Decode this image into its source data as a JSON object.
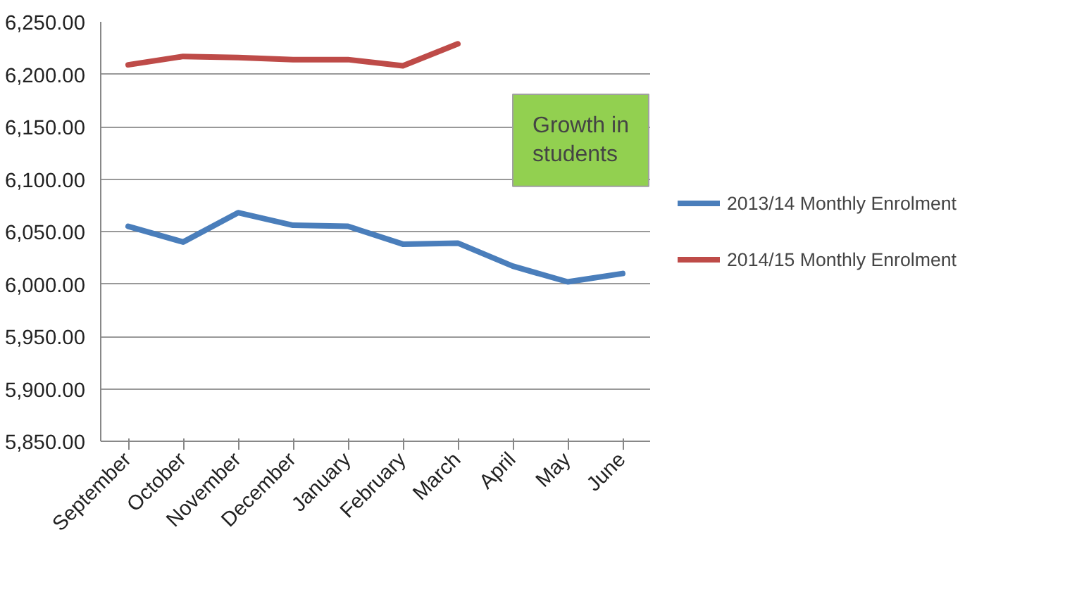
{
  "chart_data": {
    "type": "line",
    "categories": [
      "September",
      "October",
      "November",
      "December",
      "January",
      "February",
      "March",
      "April",
      "May",
      "June"
    ],
    "series": [
      {
        "name": "2013/14 Monthly Enrolment",
        "color": "#4a7ebb",
        "values": [
          6055,
          6040,
          6068,
          6056,
          6055,
          6038,
          6039,
          6017,
          6002,
          6010
        ]
      },
      {
        "name": "2014/15 Monthly Enrolment",
        "color": "#be4b48",
        "values": [
          6209,
          6217,
          6216,
          6214,
          6214,
          6208,
          6229,
          null,
          null,
          null
        ]
      }
    ],
    "ylim": [
      5850,
      6250
    ],
    "yticks": [
      {
        "value": 5850,
        "label": "5,850.00"
      },
      {
        "value": 5900,
        "label": "5,900.00"
      },
      {
        "value": 5950,
        "label": "5,950.00"
      },
      {
        "value": 6000,
        "label": "6,000.00"
      },
      {
        "value": 6050,
        "label": "6,050.00"
      },
      {
        "value": 6100,
        "label": "6,100.00"
      },
      {
        "value": 6150,
        "label": "6,150.00"
      },
      {
        "value": 6200,
        "label": "6,200.00"
      },
      {
        "value": 6250,
        "label": "6,250.00"
      }
    ],
    "annotations": [
      "Growth in\nstudents"
    ],
    "grid": "y",
    "legend": "right",
    "marker": "none",
    "line_style": "solid"
  }
}
